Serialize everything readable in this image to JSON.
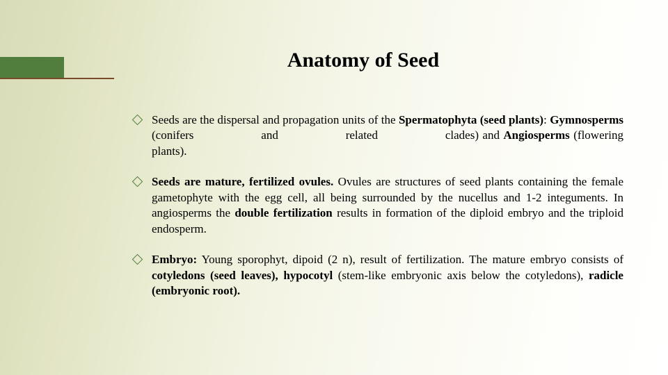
{
  "accent": {
    "bar_color": "#517e3c",
    "rule_color": "#7b4a2b"
  },
  "title": "Anatomy of Seed",
  "bullets": [
    {
      "html": "Seeds are the dispersal and propagation units of the <b>Spermatophyta (seed plants)</b>: <b>Gymnosperms</b> (conifers <span class='spacer-word' style='width:86px'></span> and <span class='spacer-word' style='width:86px'></span> related <span class='spacer-word' style='width:86px'></span> clades) and <b>Angiosperms</b> (flowering plants)."
    },
    {
      "html": "<b>Seeds are mature, fertilized ovules.</b> Ovules are structures of seed plants containing the female gametophyte with the egg cell, all being surrounded by the nucellus and 1-2 integuments. In angiosperms the <b>double fertilization</b> results in formation of the diploid embryo and the triploid endosperm."
    },
    {
      "html": "<b>Embryo:</b> Young sporophyt, dipoid (2 n), result of fertilization. The mature embryo consists of <b>cotyledons (seed leaves), hypocotyl</b> (stem-like embryonic axis below the cotyledons), <b>radicle (embryonic root).</b>"
    }
  ]
}
